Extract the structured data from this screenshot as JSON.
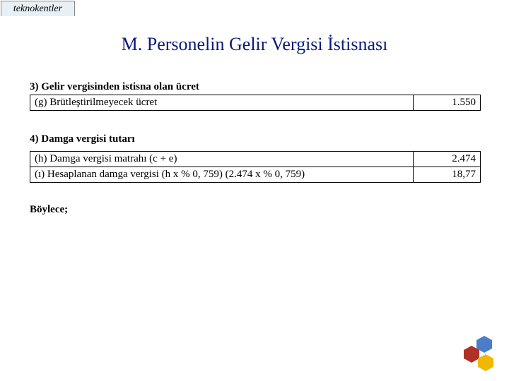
{
  "tab_label": "teknokentler",
  "title": "M. Personelin Gelir Vergisi İstisnası",
  "section3": {
    "label": "3) Gelir vergisinden istisna olan ücret",
    "rows": [
      {
        "desc": "(g) Brütleştirilmeyecek ücret",
        "value": "1.550"
      }
    ]
  },
  "section4": {
    "label": "4) Damga vergisi tutarı",
    "rows": [
      {
        "desc": "(h) Damga vergisi matrahı (c + e)",
        "value": "2.474"
      },
      {
        "desc": "(ı) Hesaplanan damga vergisi  (h x % 0, 759) (2.474 x % 0, 759)",
        "value": "18,77"
      }
    ]
  },
  "closing": "Böylece;",
  "colors": {
    "title": "#0a1a7a",
    "tab_bg": "#e8f0f5",
    "logo_blue": "#4a7ec9",
    "logo_red": "#b03028",
    "logo_yellow": "#f0b800"
  }
}
